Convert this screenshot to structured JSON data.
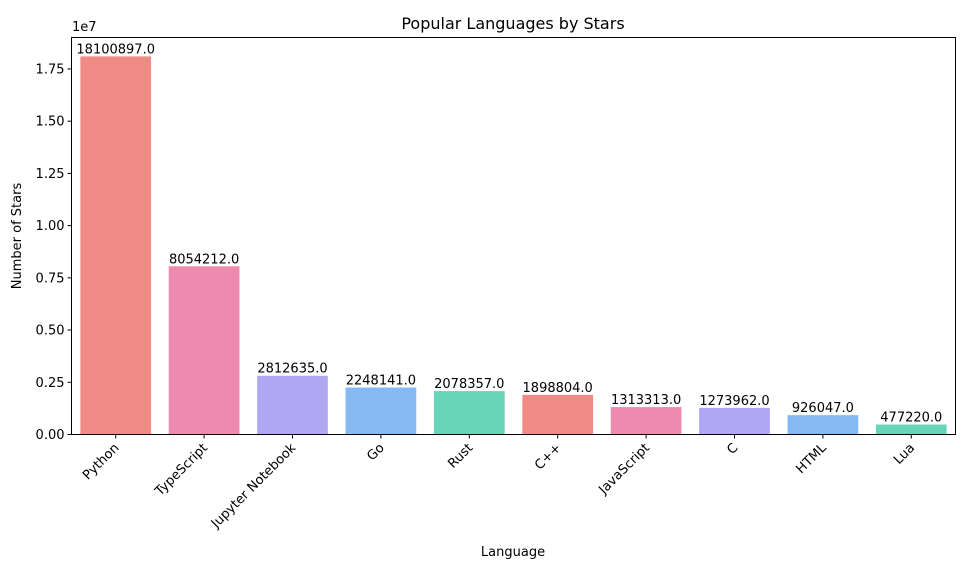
{
  "chart_data": {
    "type": "bar",
    "title": "Popular Languages by Stars",
    "xlabel": "Language",
    "ylabel": "Number of Stars",
    "y_scale_label": "1e7",
    "y_tick_labels": [
      "0.00",
      "0.25",
      "0.50",
      "0.75",
      "1.00",
      "1.25",
      "1.50",
      "1.75"
    ],
    "ylim": [
      0,
      19005941.85
    ],
    "categories": [
      "Python",
      "TypeScript",
      "Jupyter Notebook",
      "Go",
      "Rust",
      "C++",
      "JavaScript",
      "C",
      "HTML",
      "Lua"
    ],
    "values": [
      18100897,
      8054212,
      2812635,
      2248141,
      2078357,
      1898804,
      1313313,
      1273962,
      926047,
      477220
    ],
    "value_labels": [
      "18100897.0",
      "8054212.0",
      "2812635.0",
      "2248141.0",
      "2078357.0",
      "1898804.0",
      "1313313.0",
      "1273962.0",
      "926047.0",
      "477220.0"
    ],
    "colors": [
      "#f08a85",
      "#ef8aaf",
      "#b0a7f3",
      "#86b8f1",
      "#68d4b8",
      "#f08a85",
      "#ef8aaf",
      "#b0a7f3",
      "#86b8f1",
      "#68d4b8"
    ],
    "grid": false,
    "legend": "none"
  }
}
